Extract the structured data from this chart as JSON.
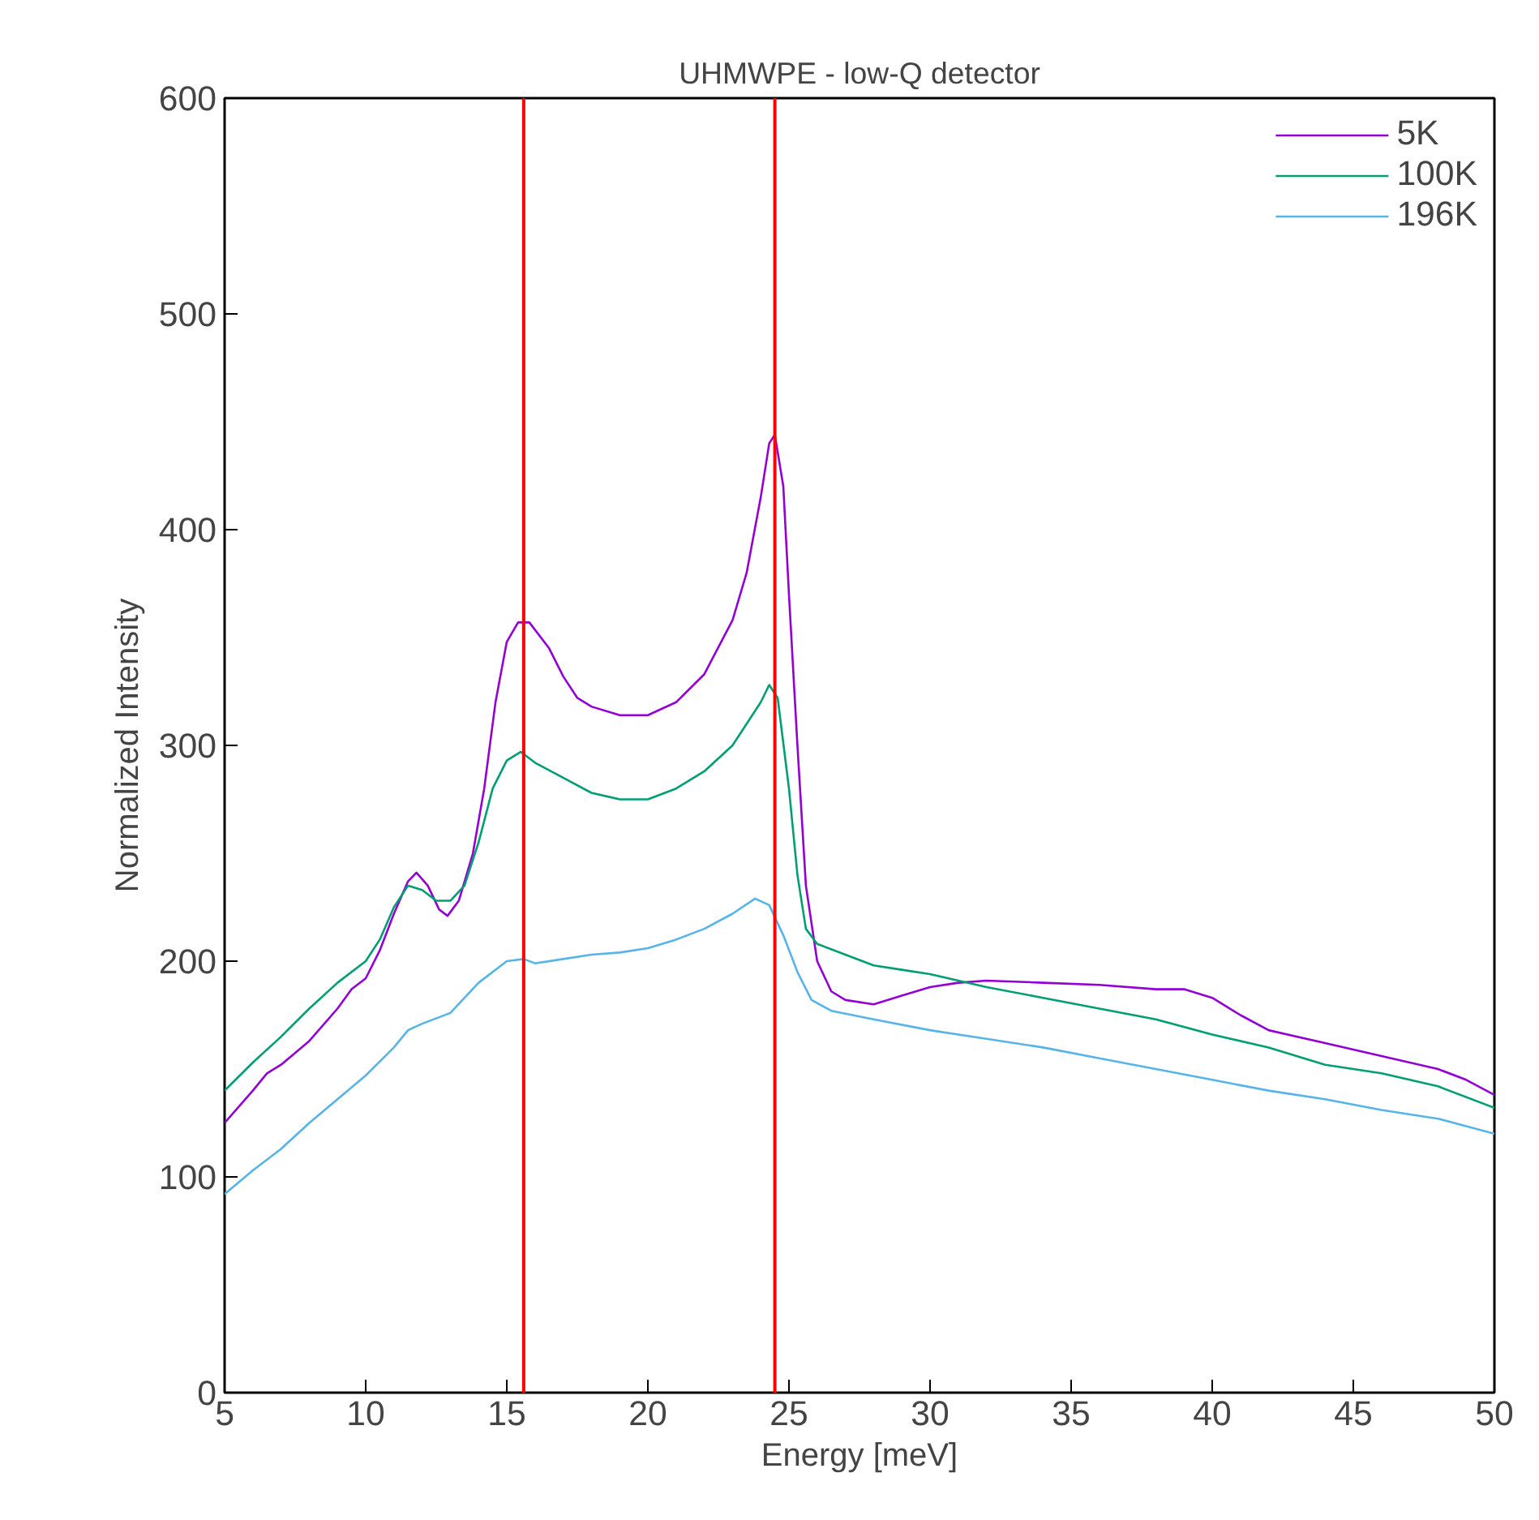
{
  "chart_data": {
    "type": "line",
    "title": "UHMWPE - low-Q detector",
    "xlabel": "Energy [meV]",
    "ylabel": "Normalized Intensity",
    "xlim": [
      5,
      50
    ],
    "xticks": [
      5,
      10,
      15,
      20,
      25,
      30,
      35,
      40,
      45,
      50
    ],
    "ylim": [
      0,
      600
    ],
    "yticks": [
      0,
      100,
      200,
      300,
      400,
      500,
      600
    ],
    "grid": false,
    "legend": "top right",
    "marker": "none",
    "line_style": "solid",
    "series": [
      {
        "name": "5K",
        "color": "#9400d3",
        "x": [
          5,
          6,
          6.5,
          7,
          8,
          9,
          9.5,
          10,
          10.5,
          11,
          11.5,
          11.8,
          12.2,
          12.6,
          12.9,
          13.3,
          13.8,
          14.2,
          14.6,
          15,
          15.4,
          15.8,
          16.5,
          17,
          17.5,
          18,
          19,
          20,
          21,
          22,
          23,
          23.5,
          24,
          24.3,
          24.5,
          24.8,
          25,
          25.3,
          25.6,
          26,
          26.5,
          27,
          28,
          29,
          30,
          31,
          32,
          34,
          36,
          38,
          39,
          40,
          41,
          42,
          44,
          46,
          48,
          49,
          50
        ],
        "values": [
          125,
          140,
          148,
          152,
          163,
          178,
          187,
          192,
          205,
          222,
          237,
          241,
          235,
          224,
          221,
          228,
          250,
          280,
          320,
          348,
          357,
          357,
          345,
          332,
          322,
          318,
          314,
          314,
          320,
          333,
          358,
          380,
          415,
          440,
          444,
          420,
          370,
          300,
          235,
          200,
          186,
          182,
          180,
          184,
          188,
          190,
          191,
          190,
          189,
          187,
          187,
          183,
          175,
          168,
          162,
          156,
          150,
          145,
          138
        ]
      },
      {
        "name": "100K",
        "color": "#009e73",
        "x": [
          5,
          6,
          7,
          8,
          9,
          10,
          10.5,
          11,
          11.5,
          12,
          12.5,
          13,
          13.5,
          14,
          14.5,
          15,
          15.5,
          16,
          17,
          18,
          19,
          20,
          21,
          22,
          23,
          24,
          24.3,
          24.6,
          25,
          25.3,
          25.6,
          26,
          27,
          28,
          29,
          30,
          31,
          32,
          34,
          36,
          38,
          40,
          42,
          44,
          46,
          48,
          50
        ],
        "values": [
          140,
          153,
          165,
          178,
          190,
          200,
          210,
          225,
          235,
          233,
          228,
          228,
          235,
          255,
          280,
          293,
          297,
          292,
          285,
          278,
          275,
          275,
          280,
          288,
          300,
          320,
          328,
          322,
          280,
          240,
          215,
          208,
          203,
          198,
          196,
          194,
          191,
          188,
          183,
          178,
          173,
          166,
          160,
          152,
          148,
          142,
          132
        ]
      },
      {
        "name": "196K",
        "color": "#56b4e9",
        "x": [
          5,
          6,
          7,
          8,
          9,
          10,
          11,
          11.5,
          12,
          13,
          14,
          15,
          15.6,
          16,
          17,
          18,
          19,
          20,
          21,
          22,
          23,
          23.8,
          24.3,
          24.8,
          25.3,
          25.8,
          26.5,
          28,
          30,
          32,
          34,
          36,
          38,
          40,
          42,
          44,
          46,
          48,
          50
        ],
        "values": [
          92,
          103,
          113,
          125,
          136,
          147,
          160,
          168,
          171,
          176,
          190,
          200,
          201,
          199,
          201,
          203,
          204,
          206,
          210,
          215,
          222,
          229,
          226,
          212,
          195,
          182,
          177,
          173,
          168,
          164,
          160,
          155,
          150,
          145,
          140,
          136,
          131,
          127,
          120
        ]
      }
    ],
    "ref_lines": [
      {
        "axis": "x",
        "value": 15.6,
        "color": "#ff0000",
        "line_style": "solid"
      },
      {
        "axis": "x",
        "value": 24.5,
        "color": "#ff0000",
        "line_style": "solid"
      }
    ]
  }
}
